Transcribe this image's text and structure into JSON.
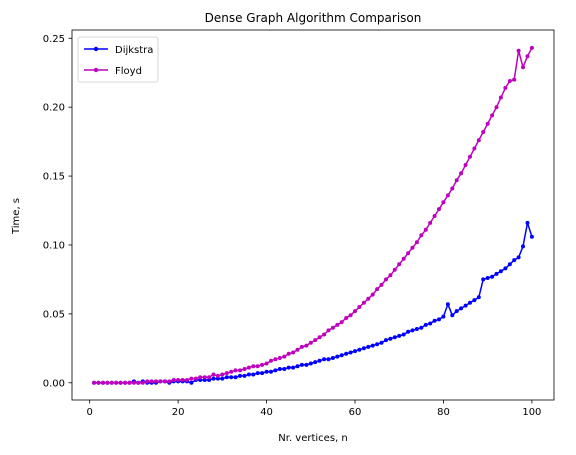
{
  "chart_data": {
    "type": "line",
    "title": "Dense Graph Algorithm Comparison",
    "xlabel": "Nr. vertices, n",
    "ylabel": "Time, s",
    "xlim": [
      -4,
      105
    ],
    "ylim": [
      -0.0125,
      0.256
    ],
    "xticks": [
      0,
      20,
      40,
      60,
      80,
      100
    ],
    "xtick_labels": [
      "0",
      "20",
      "40",
      "60",
      "80",
      "100"
    ],
    "yticks": [
      0,
      0.05,
      0.1,
      0.15,
      0.2,
      0.25
    ],
    "ytick_labels": [
      "0.00",
      "0.05",
      "0.10",
      "0.15",
      "0.20",
      "0.25"
    ],
    "grid": false,
    "legend": {
      "position": "top-left"
    },
    "series": [
      {
        "name": "Dijkstra",
        "color": "#0000ff",
        "x": [
          1,
          2,
          3,
          4,
          5,
          6,
          7,
          8,
          9,
          10,
          11,
          12,
          13,
          14,
          15,
          16,
          17,
          18,
          19,
          20,
          21,
          22,
          23,
          24,
          25,
          26,
          27,
          28,
          29,
          30,
          31,
          32,
          33,
          34,
          35,
          36,
          37,
          38,
          39,
          40,
          41,
          42,
          43,
          44,
          45,
          46,
          47,
          48,
          49,
          50,
          51,
          52,
          53,
          54,
          55,
          56,
          57,
          58,
          59,
          60,
          61,
          62,
          63,
          64,
          65,
          66,
          67,
          68,
          69,
          70,
          71,
          72,
          73,
          74,
          75,
          76,
          77,
          78,
          79,
          80,
          81,
          82,
          83,
          84,
          85,
          86,
          87,
          88,
          89,
          90,
          91,
          92,
          93,
          94,
          95,
          96,
          97,
          98,
          99,
          100
        ],
        "y": [
          0,
          0,
          0,
          0,
          0,
          0,
          0,
          0,
          0,
          0.001,
          0,
          0.001,
          0,
          0,
          0,
          0.001,
          0.001,
          0,
          0.001,
          0.001,
          0.001,
          0.001,
          0,
          0.002,
          0.002,
          0.002,
          0.002,
          0.003,
          0.003,
          0.003,
          0.004,
          0.004,
          0.004,
          0.005,
          0.005,
          0.006,
          0.006,
          0.007,
          0.007,
          0.008,
          0.008,
          0.009,
          0.01,
          0.01,
          0.011,
          0.011,
          0.012,
          0.013,
          0.013,
          0.014,
          0.015,
          0.016,
          0.017,
          0.017,
          0.018,
          0.019,
          0.02,
          0.021,
          0.022,
          0.023,
          0.024,
          0.025,
          0.026,
          0.027,
          0.028,
          0.029,
          0.031,
          0.032,
          0.033,
          0.034,
          0.035,
          0.037,
          0.038,
          0.039,
          0.04,
          0.042,
          0.043,
          0.045,
          0.046,
          0.048,
          0.057,
          0.049,
          0.052,
          0.054,
          0.056,
          0.058,
          0.06,
          0.062,
          0.075,
          0.076,
          0.077,
          0.079,
          0.081,
          0.083,
          0.086,
          0.089,
          0.091,
          0.099,
          0.116,
          0.106
        ]
      },
      {
        "name": "Floyd",
        "color": "#bf00bf",
        "x": [
          1,
          2,
          3,
          4,
          5,
          6,
          7,
          8,
          9,
          10,
          11,
          12,
          13,
          14,
          15,
          16,
          17,
          18,
          19,
          20,
          21,
          22,
          23,
          24,
          25,
          26,
          27,
          28,
          29,
          30,
          31,
          32,
          33,
          34,
          35,
          36,
          37,
          38,
          39,
          40,
          41,
          42,
          43,
          44,
          45,
          46,
          47,
          48,
          49,
          50,
          51,
          52,
          53,
          54,
          55,
          56,
          57,
          58,
          59,
          60,
          61,
          62,
          63,
          64,
          65,
          66,
          67,
          68,
          69,
          70,
          71,
          72,
          73,
          74,
          75,
          76,
          77,
          78,
          79,
          80,
          81,
          82,
          83,
          84,
          85,
          86,
          87,
          88,
          89,
          90,
          91,
          92,
          93,
          94,
          95,
          96,
          97,
          98,
          99,
          100
        ],
        "y": [
          0,
          0,
          0,
          0,
          0,
          0,
          0,
          0,
          0,
          0,
          0,
          0,
          0.001,
          0.001,
          0.001,
          0.001,
          0.001,
          0.001,
          0.002,
          0.002,
          0.002,
          0.002,
          0.003,
          0.003,
          0.004,
          0.004,
          0.004,
          0.006,
          0.005,
          0.006,
          0.007,
          0.008,
          0.009,
          0.009,
          0.01,
          0.011,
          0.012,
          0.012,
          0.013,
          0.014,
          0.016,
          0.017,
          0.018,
          0.019,
          0.021,
          0.022,
          0.024,
          0.026,
          0.027,
          0.029,
          0.031,
          0.033,
          0.035,
          0.038,
          0.04,
          0.042,
          0.044,
          0.047,
          0.049,
          0.052,
          0.055,
          0.058,
          0.061,
          0.064,
          0.068,
          0.071,
          0.075,
          0.078,
          0.082,
          0.086,
          0.09,
          0.094,
          0.098,
          0.102,
          0.107,
          0.111,
          0.116,
          0.121,
          0.126,
          0.131,
          0.136,
          0.141,
          0.147,
          0.152,
          0.158,
          0.164,
          0.17,
          0.176,
          0.182,
          0.188,
          0.194,
          0.2,
          0.207,
          0.214,
          0.219,
          0.22,
          0.241,
          0.229,
          0.237,
          0.243
        ]
      }
    ]
  }
}
